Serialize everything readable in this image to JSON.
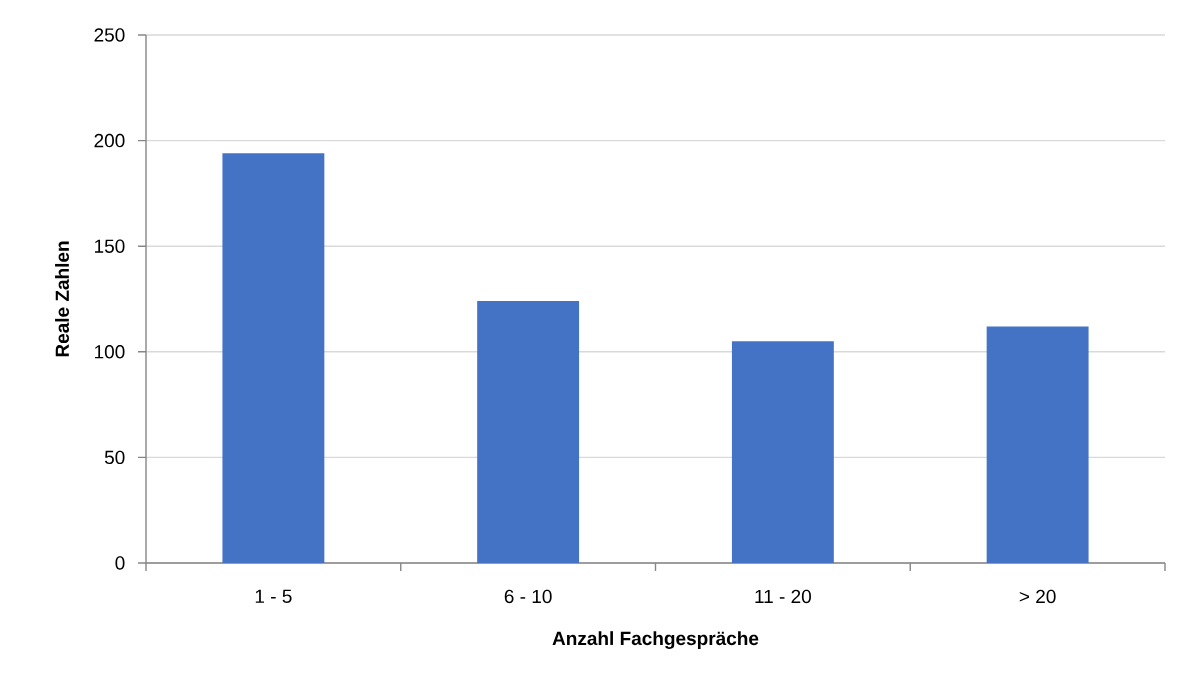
{
  "chart_data": {
    "type": "bar",
    "xlabel": "Anzahl Fachgespräche",
    "ylabel": "Reale Zahlen",
    "categories": [
      "1 - 5",
      "6 - 10",
      "11 - 20",
      "> 20"
    ],
    "values": [
      194,
      124,
      105,
      112
    ],
    "color": "#4472c4",
    "ylim": [
      0,
      250
    ],
    "yticks": [
      0,
      50,
      100,
      150,
      200,
      250
    ],
    "grid": "y"
  }
}
